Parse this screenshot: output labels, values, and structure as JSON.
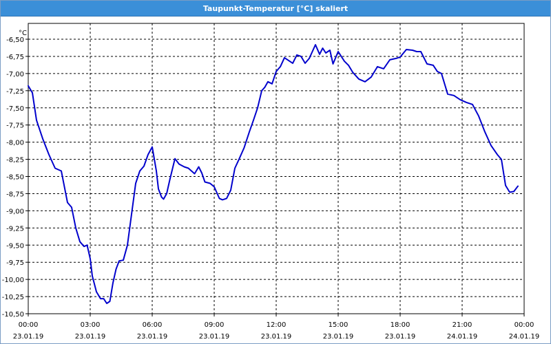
{
  "window": {
    "title": "Taupunkt-Temperatur [°C] skaliert"
  },
  "chart_data": {
    "type": "line",
    "title": "Taupunkt-Temperatur [°C] skaliert",
    "ylabel": "°C",
    "ylim": [
      -10.5,
      -6.5
    ],
    "y_ticks": [
      "-6,50",
      "-6,75",
      "-7,00",
      "-7,25",
      "-7,50",
      "-7,75",
      "-8,00",
      "-8,25",
      "-8,50",
      "-8,75",
      "-9,00",
      "-9,25",
      "-9,50",
      "-9,75",
      "-10,00",
      "-10,25",
      "-10,50"
    ],
    "x_ticks": [
      {
        "time": "00:00",
        "date": "23.01.19"
      },
      {
        "time": "03:00",
        "date": "23.01.19"
      },
      {
        "time": "06:00",
        "date": "23.01.19"
      },
      {
        "time": "09:00",
        "date": "23.01.19"
      },
      {
        "time": "12:00",
        "date": "23.01.19"
      },
      {
        "time": "15:00",
        "date": "23.01.19"
      },
      {
        "time": "18:00",
        "date": "23.01.19"
      },
      {
        "time": "21:00",
        "date": "24.01.19"
      },
      {
        "time": "00:00",
        "date": "24.01.19"
      }
    ],
    "grid": true,
    "line_color": "#0000cc",
    "series": [
      {
        "hours": [
          0,
          0.2,
          0.4,
          0.7,
          1.0,
          1.3,
          1.6,
          1.9,
          2.1,
          2.3,
          2.5,
          2.7,
          2.85,
          3.0,
          3.1,
          3.3,
          3.5,
          3.65,
          3.8,
          3.95,
          4.1,
          4.25,
          4.4,
          4.6,
          4.8,
          5.0,
          5.2,
          5.4,
          5.6,
          5.8,
          6.0,
          6.2,
          6.3,
          6.45,
          6.55,
          6.7,
          6.85,
          7.1,
          7.3,
          7.55,
          7.75,
          7.9,
          8.05,
          8.25,
          8.4,
          8.55,
          8.8,
          9.0,
          9.25,
          9.4,
          9.6,
          9.8,
          10.0,
          10.2,
          10.45,
          10.7,
          10.9,
          11.1,
          11.3,
          11.45,
          11.6,
          11.8,
          12.0,
          12.2,
          12.4,
          12.55,
          12.8,
          13.0,
          13.2,
          13.4,
          13.6,
          13.75,
          13.9,
          14.1,
          14.25,
          14.4,
          14.6,
          14.75,
          15.0,
          15.3,
          15.5,
          15.7,
          16.0,
          16.3,
          16.6,
          16.9,
          17.2,
          17.5,
          17.8,
          18.0,
          18.3,
          18.6,
          18.8,
          19.0,
          19.3,
          19.6,
          19.8,
          20.0,
          20.3,
          20.6,
          20.9,
          21.2,
          21.5,
          21.8,
          22.1,
          22.4,
          22.7,
          22.9,
          23.1,
          23.3,
          23.5,
          23.7
        ],
        "values": [
          -7.18,
          -7.28,
          -7.68,
          -7.95,
          -8.18,
          -8.38,
          -8.42,
          -8.88,
          -8.95,
          -9.25,
          -9.45,
          -9.52,
          -9.5,
          -9.7,
          -9.95,
          -10.18,
          -10.28,
          -10.28,
          -10.35,
          -10.32,
          -10.05,
          -9.85,
          -9.73,
          -9.72,
          -9.5,
          -9.05,
          -8.6,
          -8.42,
          -8.35,
          -8.18,
          -8.07,
          -8.42,
          -8.68,
          -8.8,
          -8.83,
          -8.75,
          -8.55,
          -8.24,
          -8.32,
          -8.36,
          -8.38,
          -8.42,
          -8.46,
          -8.36,
          -8.45,
          -8.58,
          -8.6,
          -8.65,
          -8.82,
          -8.84,
          -8.82,
          -8.7,
          -8.38,
          -8.25,
          -8.08,
          -7.85,
          -7.68,
          -7.5,
          -7.25,
          -7.2,
          -7.12,
          -7.15,
          -6.97,
          -6.9,
          -6.77,
          -6.8,
          -6.85,
          -6.73,
          -6.75,
          -6.85,
          -6.78,
          -6.68,
          -6.58,
          -6.72,
          -6.63,
          -6.7,
          -6.66,
          -6.86,
          -6.68,
          -6.82,
          -6.88,
          -6.98,
          -7.08,
          -7.12,
          -7.05,
          -6.9,
          -6.93,
          -6.8,
          -6.78,
          -6.76,
          -6.65,
          -6.66,
          -6.68,
          -6.68,
          -6.86,
          -6.88,
          -6.97,
          -7.0,
          -7.3,
          -7.32,
          -7.38,
          -7.42,
          -7.45,
          -7.62,
          -7.85,
          -8.05,
          -8.18,
          -8.25,
          -8.63,
          -8.73,
          -8.72,
          -8.64
        ]
      }
    ]
  }
}
